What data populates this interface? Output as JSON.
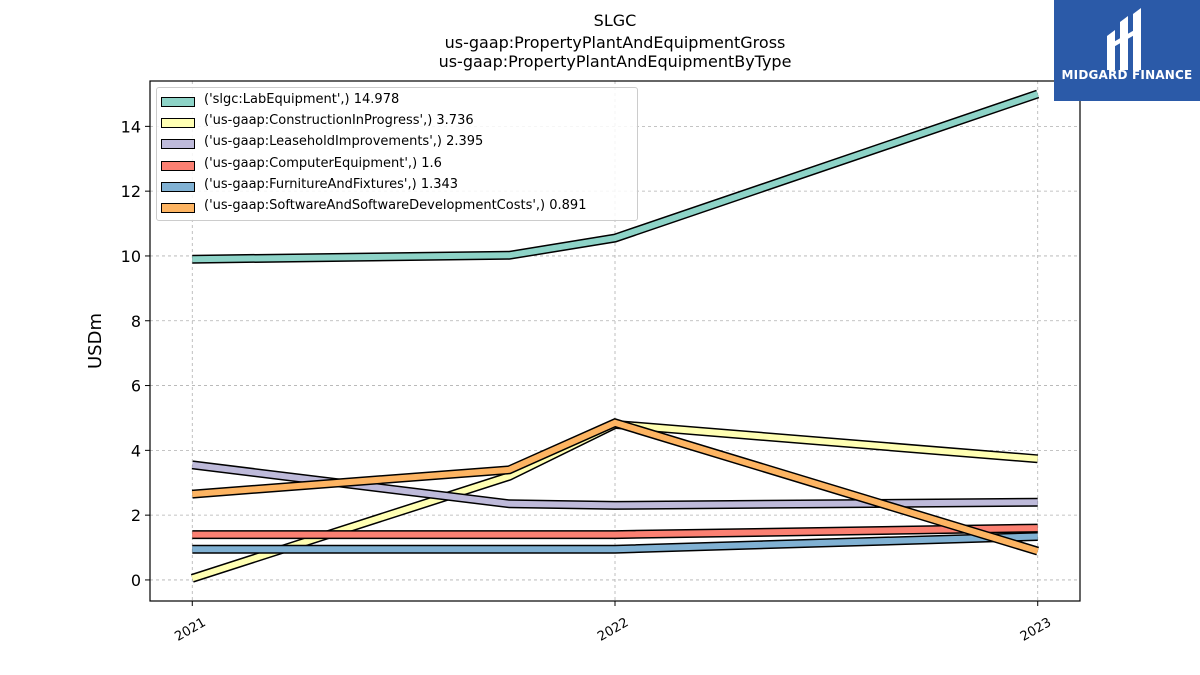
{
  "title": {
    "line1": "SLGC",
    "line2": "us-gaap:PropertyPlantAndEquipmentGross",
    "line3": "us-gaap:PropertyPlantAndEquipmentByType"
  },
  "logo": {
    "text": "MIDGARD FINANCE",
    "background": "#2b5aa8"
  },
  "chart_data": {
    "type": "line",
    "ylabel": "USDm",
    "xlabel": "",
    "ylim": [
      -0.65,
      15.4
    ],
    "yticks": [
      0,
      2,
      4,
      6,
      8,
      10,
      12,
      14
    ],
    "xticks": [
      "2021",
      "2022",
      "2023"
    ],
    "grid": true,
    "legend_position": "top-left",
    "series": [
      {
        "name": "('slgc:LabEquipment',) 14.978",
        "color": "#8dd3c7",
        "points": [
          [
            2021,
            9.9
          ],
          [
            2021.75,
            10.02
          ],
          [
            2022,
            10.55
          ],
          [
            2023,
            15.0
          ]
        ]
      },
      {
        "name": "('us-gaap:ConstructionInProgress',) 3.736",
        "color": "#ffffb3",
        "points": [
          [
            2021,
            0.05
          ],
          [
            2021.75,
            3.2
          ],
          [
            2022,
            4.8
          ],
          [
            2023,
            3.74
          ]
        ]
      },
      {
        "name": "('us-gaap:LeaseholdImprovements',) 2.395",
        "color": "#bebada",
        "points": [
          [
            2021,
            3.55
          ],
          [
            2021.75,
            2.35
          ],
          [
            2022,
            2.3
          ],
          [
            2023,
            2.4
          ]
        ]
      },
      {
        "name": "('us-gaap:ComputerEquipment',) 1.6",
        "color": "#fb8072",
        "points": [
          [
            2021,
            1.4
          ],
          [
            2021.75,
            1.4
          ],
          [
            2022,
            1.4
          ],
          [
            2023,
            1.6
          ]
        ]
      },
      {
        "name": "('us-gaap:FurnitureAndFixtures',) 1.343",
        "color": "#80b1d3",
        "points": [
          [
            2021,
            0.95
          ],
          [
            2021.75,
            0.95
          ],
          [
            2022,
            0.95
          ],
          [
            2023,
            1.34
          ]
        ]
      },
      {
        "name": "('us-gaap:SoftwareAndSoftwareDevelopmentCosts',) 0.891",
        "color": "#fdb462",
        "points": [
          [
            2021,
            2.65
          ],
          [
            2021.75,
            3.4
          ],
          [
            2022,
            4.85
          ],
          [
            2023,
            0.89
          ]
        ]
      }
    ]
  }
}
